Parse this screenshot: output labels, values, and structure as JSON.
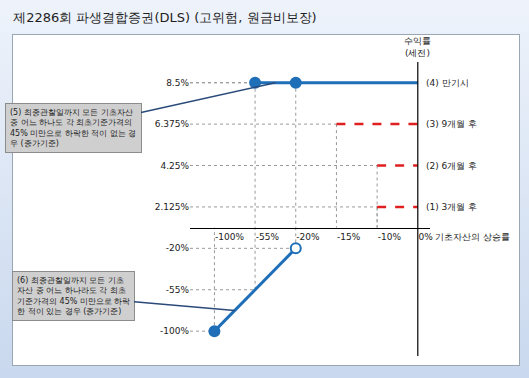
{
  "chart_data": {
    "type": "line",
    "title": "제2286회 파생결합증권(DLS) (고위험, 원금비보장)",
    "x_label": "기초자산의 상승률",
    "y_label": "수익률\n(세전)",
    "grid": false,
    "xticks": [
      {
        "value": -100,
        "label": "-100%"
      },
      {
        "value": -55,
        "label": "-55%"
      },
      {
        "value": -20,
        "label": "-20%"
      },
      {
        "value": -15,
        "label": "-15%"
      },
      {
        "value": -10,
        "label": "-10%"
      },
      {
        "value": 0,
        "label": "0%"
      }
    ],
    "yticks": [
      {
        "value": -100,
        "label": "-100%"
      },
      {
        "value": -55,
        "label": "-55%"
      },
      {
        "value": -20,
        "label": "-20%"
      },
      {
        "value": 2.125,
        "label": "2.125%"
      },
      {
        "value": 4.25,
        "label": "4.25%"
      },
      {
        "value": 6.375,
        "label": "6.375%"
      },
      {
        "value": 8.5,
        "label": "8.5%"
      }
    ],
    "series": [
      {
        "name": "(4) 만기시",
        "color": "#1f6fb8",
        "line_style": "solid",
        "x": [
          -55,
          -20,
          0
        ],
        "values": [
          8.5,
          8.5,
          8.5
        ],
        "note": [
          "(5) 최종관찰일까지 모든 기초자산",
          "중 어느 하나도 각 최초기준가격의",
          "45% 미만으로 하락한 적이 없는 경",
          "우 (종가기준)"
        ]
      },
      {
        "name": "(3) 9개월 후",
        "color": "#e02020",
        "line_style": "dash",
        "x": [
          -15,
          0
        ],
        "values": [
          6.375,
          6.375
        ]
      },
      {
        "name": "(2) 6개월 후",
        "color": "#e02020",
        "line_style": "dash",
        "x": [
          -10,
          0
        ],
        "values": [
          4.25,
          4.25
        ]
      },
      {
        "name": "(1) 3개월 후",
        "color": "#e02020",
        "line_style": "dash",
        "x": [
          -10,
          0
        ],
        "values": [
          2.125,
          2.125
        ]
      },
      {
        "color": "#1f6fb8",
        "line_style": "solid",
        "x": [
          -100,
          -55,
          -20
        ],
        "values": [
          -100,
          -55,
          -20
        ],
        "note": [
          "(6) 최종관찰일까지 모든 기초",
          "자산 중 어느 하나라도 각 최초",
          "기준가격의 45% 미만으로 하락",
          "한 적이 있는 경우 (종가기준)"
        ]
      }
    ],
    "points": [
      {
        "x": -55,
        "y": 8.5,
        "marker": "circle",
        "color": "#1f6fb8"
      },
      {
        "x": -20,
        "y": 8.5,
        "marker": "circle",
        "color": "#1f6fb8"
      },
      {
        "x": -100,
        "y": -100,
        "marker": "circle",
        "color": "#1f6fb8"
      },
      {
        "x": -20,
        "y": -20,
        "marker": "circle-open",
        "color": "#1f6fb8"
      }
    ]
  }
}
